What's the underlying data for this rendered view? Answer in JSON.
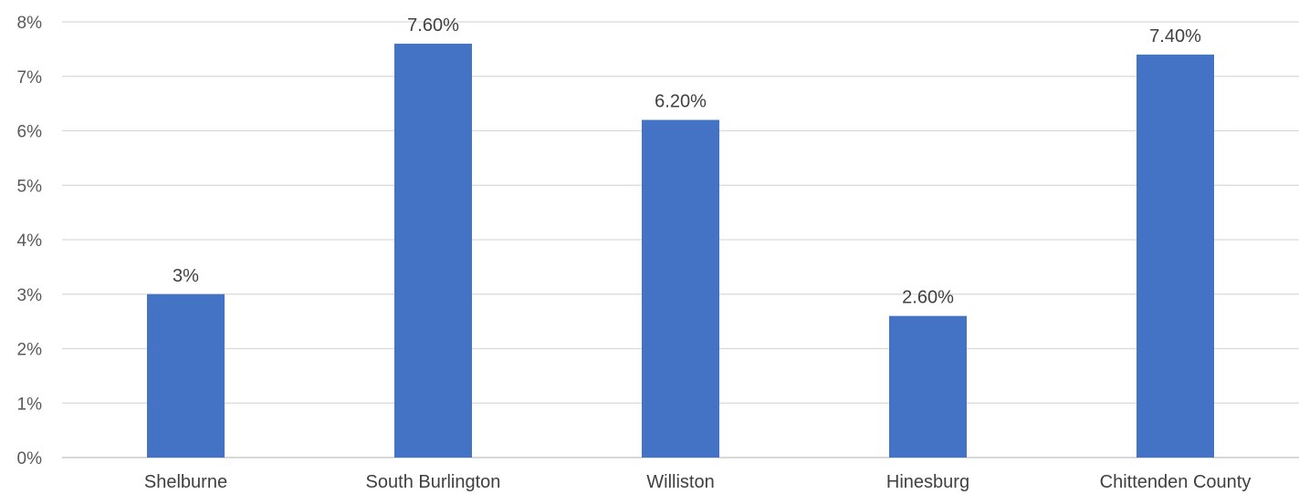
{
  "chart_data": {
    "type": "bar",
    "categories": [
      "Shelburne",
      "South Burlington",
      "Williston",
      "Hinesburg",
      "Chittenden County"
    ],
    "values": [
      3,
      7.6,
      6.2,
      2.6,
      7.4
    ],
    "data_labels": [
      "3%",
      "7.60%",
      "6.20%",
      "2.60%",
      "7.40%"
    ],
    "y_ticks": [
      0,
      1,
      2,
      3,
      4,
      5,
      6,
      7,
      8
    ],
    "y_tick_labels": [
      "0%",
      "1%",
      "2%",
      "3%",
      "4%",
      "5%",
      "6%",
      "7%",
      "8%"
    ],
    "ylim": [
      0,
      8
    ],
    "grid": true,
    "bar_color": "#4472C4",
    "title": "",
    "xlabel": "",
    "ylabel": ""
  }
}
